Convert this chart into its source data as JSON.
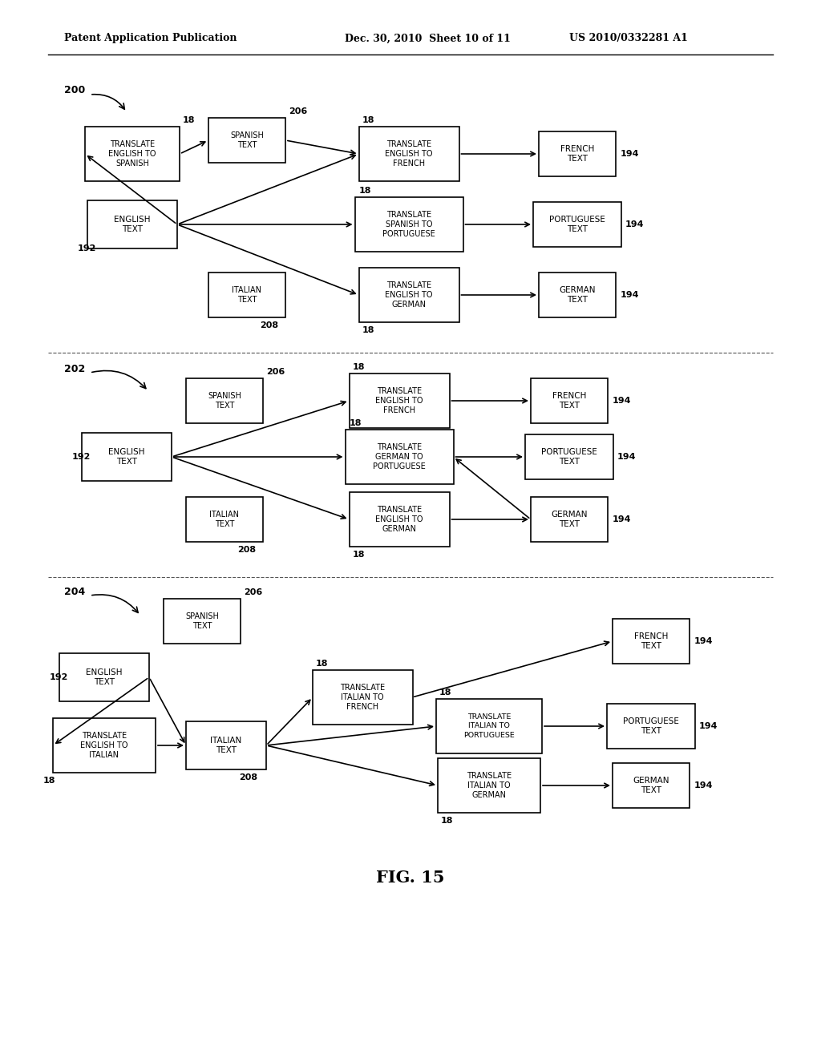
{
  "header_left": "Patent Application Publication",
  "header_mid": "Dec. 30, 2010  Sheet 10 of 11",
  "header_right": "US 2010/0332281 A1",
  "figure_label": "FIG. 15",
  "bg_color": "#ffffff"
}
